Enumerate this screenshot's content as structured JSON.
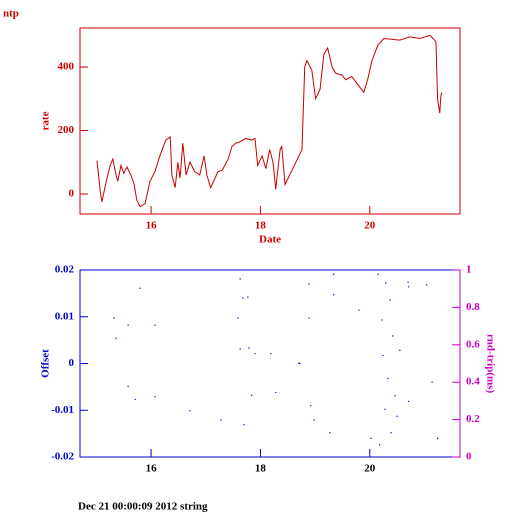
{
  "chart_data": [
    {
      "type": "line",
      "title": "ntp",
      "ylabel": "rate",
      "xlabel": "Date",
      "color": "#cc0000",
      "xlim": [
        14.7,
        21.65
      ],
      "xticks": [
        16,
        18,
        20
      ],
      "ylim": [
        -63,
        523
      ],
      "yticks": [
        0,
        200,
        400
      ],
      "x": [
        15.01,
        15.07,
        15.1,
        15.18,
        15.25,
        15.3,
        15.36,
        15.39,
        15.45,
        15.5,
        15.56,
        15.63,
        15.69,
        15.74,
        15.8,
        15.89,
        15.98,
        16.07,
        16.16,
        16.27,
        16.35,
        16.38,
        16.44,
        16.49,
        16.53,
        16.58,
        16.64,
        16.71,
        16.8,
        16.89,
        16.97,
        17.02,
        17.09,
        17.17,
        17.22,
        17.3,
        17.41,
        17.48,
        17.55,
        17.63,
        17.73,
        17.84,
        17.9,
        17.95,
        18.03,
        18.1,
        18.17,
        18.23,
        18.28,
        18.36,
        18.39,
        18.45,
        18.76,
        18.81,
        18.85,
        18.94,
        19.01,
        19.09,
        19.16,
        19.23,
        19.31,
        19.38,
        19.49,
        19.56,
        19.67,
        19.76,
        19.89,
        19.96,
        20.04,
        20.15,
        20.26,
        20.55,
        20.73,
        20.92,
        21.1,
        21.13,
        21.21,
        21.24,
        21.28,
        21.3,
        21.32
      ],
      "values": [
        105,
        10,
        -25,
        40,
        90,
        110,
        60,
        40,
        90,
        65,
        85,
        60,
        30,
        -20,
        -40,
        -30,
        40,
        70,
        120,
        170,
        180,
        60,
        20,
        100,
        50,
        160,
        60,
        100,
        70,
        60,
        120,
        60,
        20,
        50,
        70,
        75,
        110,
        150,
        160,
        165,
        175,
        170,
        175,
        90,
        120,
        80,
        140,
        100,
        15,
        140,
        150,
        30,
        140,
        400,
        420,
        390,
        300,
        330,
        440,
        460,
        400,
        380,
        375,
        360,
        370,
        350,
        320,
        360,
        420,
        470,
        490,
        485,
        495,
        490,
        500,
        495,
        480,
        300,
        255,
        310,
        320
      ]
    },
    {
      "type": "scatter",
      "ylabel": "Offset",
      "y2label": "rnd-trip(ms)",
      "color": "#0000cc",
      "y2color": "#cc00cc",
      "xlim": [
        14.7,
        21.65
      ],
      "xticks": [
        16,
        18,
        20
      ],
      "ylim": [
        -0.02,
        0.02
      ],
      "yticks": [
        -0.02,
        -0.01,
        0,
        0.01,
        0.02
      ],
      "y2lim": [
        0,
        1
      ],
      "y2ticks": [
        0,
        0.2,
        0.4,
        0.6,
        0.8,
        1
      ],
      "x": [
        15.32,
        15.36,
        15.58,
        15.58,
        15.71,
        15.8,
        16.07,
        16.07,
        16.71,
        17.28,
        17.59,
        17.63,
        17.63,
        17.68,
        17.7,
        17.77,
        17.79,
        17.84,
        17.9,
        18.19,
        18.28,
        18.7,
        18.72,
        18.89,
        18.89,
        18.92,
        18.98,
        19.27,
        19.34,
        19.34,
        19.8,
        20.02,
        20.15,
        20.18,
        20.22,
        20.24,
        20.28,
        20.29,
        20.33,
        20.37,
        20.39,
        20.42,
        20.46,
        20.5,
        20.55,
        20.7,
        20.71,
        20.71,
        21.04,
        21.14,
        21.24
      ],
      "values": [
        0.0097,
        0.0054,
        0.0082,
        -0.0049,
        -0.0077,
        0.0161,
        0.0082,
        -0.0071,
        -0.0101,
        -0.0121,
        0.0097,
        0.0031,
        0.0181,
        0.014,
        -0.0131,
        0.0142,
        0.0033,
        -0.0068,
        0.0021,
        0.0021,
        -0.0062,
        0.0001,
        0,
        0.017,
        0.0097,
        -0.009,
        -0.0121,
        -0.0148,
        0.0191,
        0.0147,
        0.0114,
        -0.016,
        0.0191,
        -0.0174,
        0.0093,
        0.0017,
        -0.0098,
        0.0172,
        -0.0032,
        0.0136,
        -0.0148,
        0.0059,
        -0.0069,
        -0.0113,
        0.0028,
        0.0174,
        0.0164,
        -0.0081,
        0.0168,
        -0.004,
        -0.016
      ]
    }
  ],
  "footer": "Dec 21 00:00:09 2012 string"
}
